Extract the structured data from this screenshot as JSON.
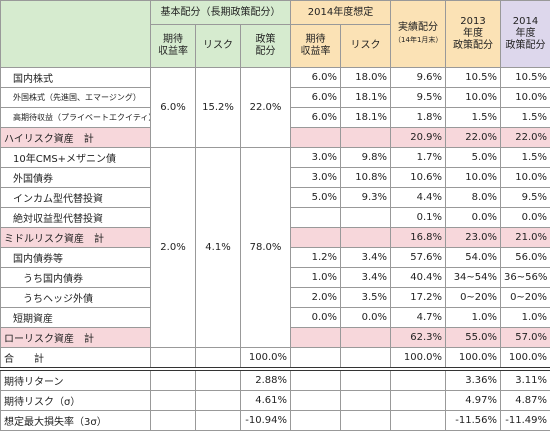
{
  "header": {
    "basic": "基本配分（長期政策配分）",
    "basic_cols": [
      "期待\n収益率",
      "リスク",
      "政策\n配分"
    ],
    "assumed": "2014年度想定",
    "assumed_cols": [
      "期待\n収益率",
      "リスク"
    ],
    "actual": "実績配分",
    "actual_note": "（14年1月末）",
    "fy2013": "2013\n年度\n政策配分",
    "fy2014": "2014\n年度\n政策配分"
  },
  "basic_groups": [
    [
      "6.0%",
      "15.2%",
      "22.0%"
    ],
    [
      "2.0%",
      "4.1%",
      "78.0%"
    ]
  ],
  "rows": [
    {
      "kind": "item",
      "label": "国内株式",
      "exp": "6.0%",
      "risk": "18.0%",
      "actual": "9.6%",
      "fy2013": "10.5%",
      "fy2014": "10.5%"
    },
    {
      "kind": "item",
      "label": "外国株式（先進国、エマージング）",
      "exp": "6.0%",
      "risk": "18.1%",
      "actual": "9.5%",
      "fy2013": "10.0%",
      "fy2014": "10.0%"
    },
    {
      "kind": "item",
      "label": "高期待収益（プライベートエクイティ）",
      "exp": "6.0%",
      "risk": "18.1%",
      "actual": "1.8%",
      "fy2013": "1.5%",
      "fy2014": "1.5%"
    },
    {
      "kind": "subtotal",
      "label": "ハイリスク資産　計",
      "actual": "20.9%",
      "fy2013": "22.0%",
      "fy2014": "22.0%"
    },
    {
      "kind": "item",
      "label": "10年CMS+メザニン債",
      "exp": "3.0%",
      "risk": "9.8%",
      "actual": "1.7%",
      "fy2013": "5.0%",
      "fy2014": "1.5%"
    },
    {
      "kind": "item",
      "label": "外国債券",
      "exp": "3.0%",
      "risk": "10.8%",
      "actual": "10.6%",
      "fy2013": "10.0%",
      "fy2014": "10.0%"
    },
    {
      "kind": "item",
      "label": "インカム型代替投資",
      "exp": "5.0%",
      "risk": "9.3%",
      "actual": "4.4%",
      "fy2013": "8.0%",
      "fy2014": "9.5%"
    },
    {
      "kind": "item",
      "label": "絶対収益型代替投資",
      "actual": "0.1%",
      "fy2013": "0.0%",
      "fy2014": "0.0%"
    },
    {
      "kind": "subtotal",
      "label": "ミドルリスク資産　計",
      "actual": "16.8%",
      "fy2013": "23.0%",
      "fy2014": "21.0%"
    },
    {
      "kind": "item",
      "label": "国内債券等",
      "exp": "1.2%",
      "risk": "3.4%",
      "actual": "57.6%",
      "fy2013": "54.0%",
      "fy2014": "56.0%"
    },
    {
      "kind": "subitem",
      "label": "うち国内債券",
      "exp": "1.0%",
      "risk": "3.4%",
      "actual": "40.4%",
      "fy2013": "34~54%",
      "fy2014": "36~56%"
    },
    {
      "kind": "subitem",
      "label": "うちヘッジ外債",
      "exp": "2.0%",
      "risk": "3.5%",
      "actual": "17.2%",
      "fy2013": "0~20%",
      "fy2014": "0~20%"
    },
    {
      "kind": "item",
      "label": "短期資産",
      "exp": "0.0%",
      "risk": "0.0%",
      "actual": "4.7%",
      "fy2013": "1.0%",
      "fy2014": "1.0%"
    },
    {
      "kind": "subtotal",
      "label": "ローリスク資産　計",
      "actual": "62.3%",
      "fy2013": "55.0%",
      "fy2014": "57.0%"
    }
  ],
  "total": {
    "label": "合　　計",
    "policy": "100.0%",
    "actual": "100.0%",
    "fy2013": "100.0%",
    "fy2014": "100.0%"
  },
  "metrics": [
    {
      "label": "期待リターン",
      "policy": "2.88%",
      "fy2013": "3.36%",
      "fy2014": "3.11%"
    },
    {
      "label": "期待リスク（σ）",
      "policy": "4.61%",
      "fy2013": "4.97%",
      "fy2014": "4.87%"
    },
    {
      "label": "想定最大損失率（3σ）",
      "policy": "-10.94%",
      "fy2013": "-11.56%",
      "fy2014": "-11.49%"
    }
  ]
}
